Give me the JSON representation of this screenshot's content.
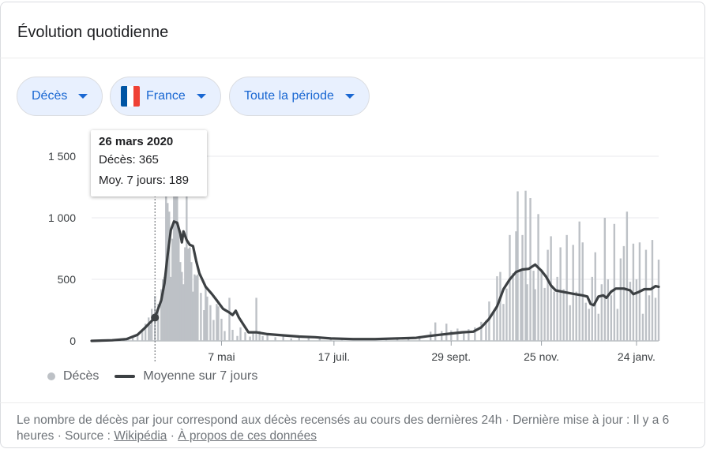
{
  "card": {
    "title": "Évolution quotidienne"
  },
  "filters": {
    "metric": "Décès",
    "country": "France",
    "period": "Toute la période",
    "flag_colors": [
      "#0055a4",
      "#ffffff",
      "#ef4135"
    ]
  },
  "tooltip": {
    "date": "26 mars 2020",
    "line1": "Décès: 365",
    "line2": "Moy. 7 jours: 189"
  },
  "legend": {
    "bars": "Décès",
    "line": "Moyenne sur 7 jours"
  },
  "footer": {
    "text": "Le nombre de décès par jour correspond aux décès recensés au cours des dernières 24h · Dernière mise à jour : Il y a 6 heures · Source : ",
    "source_link": "Wikipédia",
    "separator": " · ",
    "about_link": "À propos de ces données"
  },
  "chart_data": {
    "type": "bar",
    "title": "",
    "xlabel": "",
    "ylabel": "",
    "x_range": [
      "2020-02-15",
      "2021-02-07"
    ],
    "ylim": [
      0,
      1500
    ],
    "y_ticks": [
      0,
      500,
      1000,
      1500
    ],
    "y_tick_labels": [
      "0",
      "500",
      "1 000",
      "1 500"
    ],
    "x_ticks": [
      {
        "date": "2020-05-07",
        "label": "7 mai"
      },
      {
        "date": "2020-07-17",
        "label": "17 juil."
      },
      {
        "date": "2020-09-29",
        "label": "29 sept."
      },
      {
        "date": "2020-11-25",
        "label": "25 nov."
      },
      {
        "date": "2021-01-24",
        "label": "24 janv."
      }
    ],
    "highlight": {
      "date": "2020-03-26",
      "deaths": 365,
      "avg7": 189
    },
    "grid": true,
    "colors": {
      "bars": "#bdc1c6",
      "line": "#3c4043",
      "grid": "#e8eaed"
    },
    "series": [
      {
        "name": "Décès",
        "type": "bar",
        "points": [
          [
            "2020-02-28",
            0
          ],
          [
            "2020-03-01",
            3
          ],
          [
            "2020-03-05",
            5
          ],
          [
            "2020-03-09",
            12
          ],
          [
            "2020-03-12",
            25
          ],
          [
            "2020-03-15",
            45
          ],
          [
            "2020-03-18",
            90
          ],
          [
            "2020-03-20",
            140
          ],
          [
            "2020-03-22",
            190
          ],
          [
            "2020-03-23",
            130
          ],
          [
            "2020-03-24",
            260
          ],
          [
            "2020-03-26",
            365
          ],
          [
            "2020-03-28",
            300
          ],
          [
            "2020-03-30",
            420
          ],
          [
            "2020-03-31",
            500
          ],
          [
            "2020-04-01",
            520
          ],
          [
            "2020-04-02",
            1300
          ],
          [
            "2020-04-03",
            1120
          ],
          [
            "2020-04-04",
            1050
          ],
          [
            "2020-04-05",
            520
          ],
          [
            "2020-04-06",
            830
          ],
          [
            "2020-04-07",
            1400
          ],
          [
            "2020-04-08",
            1200
          ],
          [
            "2020-04-09",
            1350
          ],
          [
            "2020-04-10",
            900
          ],
          [
            "2020-04-11",
            640
          ],
          [
            "2020-04-12",
            560
          ],
          [
            "2020-04-13",
            460
          ],
          [
            "2020-04-14",
            760
          ],
          [
            "2020-04-15",
            1440
          ],
          [
            "2020-04-16",
            750
          ],
          [
            "2020-04-17",
            760
          ],
          [
            "2020-04-18",
            640
          ],
          [
            "2020-04-19",
            400
          ],
          [
            "2020-04-20",
            540
          ],
          [
            "2020-04-21",
            530
          ],
          [
            "2020-04-22",
            540
          ],
          [
            "2020-04-24",
            390
          ],
          [
            "2020-04-26",
            250
          ],
          [
            "2020-04-27",
            440
          ],
          [
            "2020-04-28",
            360
          ],
          [
            "2020-04-30",
            290
          ],
          [
            "2020-05-02",
            170
          ],
          [
            "2020-05-04",
            300
          ],
          [
            "2020-05-05",
            280
          ],
          [
            "2020-05-07",
            180
          ],
          [
            "2020-05-09",
            80
          ],
          [
            "2020-05-12",
            350
          ],
          [
            "2020-05-14",
            90
          ],
          [
            "2020-05-17",
            40
          ],
          [
            "2020-05-19",
            110
          ],
          [
            "2020-05-22",
            70
          ],
          [
            "2020-05-25",
            35
          ],
          [
            "2020-05-27",
            60
          ],
          [
            "2020-05-29",
            350
          ],
          [
            "2020-05-31",
            80
          ],
          [
            "2020-06-02",
            40
          ],
          [
            "2020-06-05",
            50
          ],
          [
            "2020-06-10",
            30
          ],
          [
            "2020-06-15",
            40
          ],
          [
            "2020-06-20",
            20
          ],
          [
            "2020-06-25",
            30
          ],
          [
            "2020-07-01",
            25
          ],
          [
            "2020-07-08",
            20
          ],
          [
            "2020-07-15",
            15
          ],
          [
            "2020-07-22",
            15
          ],
          [
            "2020-07-29",
            10
          ],
          [
            "2020-08-05",
            12
          ],
          [
            "2020-08-12",
            15
          ],
          [
            "2020-08-19",
            20
          ],
          [
            "2020-08-26",
            20
          ],
          [
            "2020-09-02",
            25
          ],
          [
            "2020-09-09",
            40
          ],
          [
            "2020-09-16",
            75
          ],
          [
            "2020-09-19",
            150
          ],
          [
            "2020-09-23",
            80
          ],
          [
            "2020-09-26",
            140
          ],
          [
            "2020-09-29",
            85
          ],
          [
            "2020-10-03",
            100
          ],
          [
            "2020-10-07",
            60
          ],
          [
            "2020-10-10",
            95
          ],
          [
            "2020-10-14",
            110
          ],
          [
            "2020-10-18",
            155
          ],
          [
            "2020-10-21",
            165
          ],
          [
            "2020-10-23",
            320
          ],
          [
            "2020-10-26",
            250
          ],
          [
            "2020-10-28",
            525
          ],
          [
            "2020-10-30",
            560
          ],
          [
            "2020-11-01",
            300
          ],
          [
            "2020-11-03",
            425
          ],
          [
            "2020-11-05",
            860
          ],
          [
            "2020-11-07",
            550
          ],
          [
            "2020-11-09",
            890
          ],
          [
            "2020-11-10",
            1215
          ],
          [
            "2020-11-12",
            570
          ],
          [
            "2020-11-13",
            860
          ],
          [
            "2020-11-15",
            1220
          ],
          [
            "2020-11-16",
            460
          ],
          [
            "2020-11-18",
            1160
          ],
          [
            "2020-11-20",
            570
          ],
          [
            "2020-11-21",
            420
          ],
          [
            "2020-11-23",
            1030
          ],
          [
            "2020-11-25",
            580
          ],
          [
            "2020-11-27",
            430
          ],
          [
            "2020-11-29",
            740
          ],
          [
            "2020-12-01",
            850
          ],
          [
            "2020-12-03",
            400
          ],
          [
            "2020-12-05",
            520
          ],
          [
            "2020-12-07",
            760
          ],
          [
            "2020-12-09",
            420
          ],
          [
            "2020-12-11",
            860
          ],
          [
            "2020-12-13",
            290
          ],
          [
            "2020-12-15",
            780
          ],
          [
            "2020-12-17",
            400
          ],
          [
            "2020-12-19",
            970
          ],
          [
            "2020-12-21",
            800
          ],
          [
            "2020-12-23",
            310
          ],
          [
            "2020-12-25",
            260
          ],
          [
            "2020-12-27",
            520
          ],
          [
            "2020-12-29",
            720
          ],
          [
            "2020-12-31",
            220
          ],
          [
            "2021-01-02",
            460
          ],
          [
            "2021-01-04",
            1000
          ],
          [
            "2021-01-06",
            500
          ],
          [
            "2021-01-08",
            370
          ],
          [
            "2021-01-10",
            950
          ],
          [
            "2021-01-12",
            260
          ],
          [
            "2021-01-14",
            670
          ],
          [
            "2021-01-16",
            770
          ],
          [
            "2021-01-18",
            1050
          ],
          [
            "2021-01-20",
            480
          ],
          [
            "2021-01-22",
            790
          ],
          [
            "2021-01-24",
            500
          ],
          [
            "2021-01-26",
            800
          ],
          [
            "2021-01-28",
            220
          ],
          [
            "2021-01-30",
            740
          ],
          [
            "2021-02-01",
            370
          ],
          [
            "2021-02-03",
            820
          ],
          [
            "2021-02-05",
            350
          ],
          [
            "2021-02-07",
            660
          ]
        ]
      },
      {
        "name": "Moyenne sur 7 jours",
        "type": "line",
        "points": [
          [
            "2020-02-15",
            0
          ],
          [
            "2020-02-28",
            5
          ],
          [
            "2020-03-08",
            15
          ],
          [
            "2020-03-15",
            50
          ],
          [
            "2020-03-20",
            110
          ],
          [
            "2020-03-26",
            189
          ],
          [
            "2020-03-30",
            330
          ],
          [
            "2020-04-01",
            470
          ],
          [
            "2020-04-03",
            700
          ],
          [
            "2020-04-05",
            900
          ],
          [
            "2020-04-07",
            970
          ],
          [
            "2020-04-09",
            960
          ],
          [
            "2020-04-11",
            870
          ],
          [
            "2020-04-12",
            800
          ],
          [
            "2020-04-13",
            890
          ],
          [
            "2020-04-15",
            820
          ],
          [
            "2020-04-17",
            780
          ],
          [
            "2020-04-19",
            770
          ],
          [
            "2020-04-21",
            650
          ],
          [
            "2020-04-23",
            550
          ],
          [
            "2020-04-27",
            440
          ],
          [
            "2020-05-01",
            380
          ],
          [
            "2020-05-04",
            330
          ],
          [
            "2020-05-08",
            260
          ],
          [
            "2020-05-12",
            230
          ],
          [
            "2020-05-14",
            210
          ],
          [
            "2020-05-16",
            245
          ],
          [
            "2020-05-18",
            190
          ],
          [
            "2020-05-21",
            130
          ],
          [
            "2020-05-24",
            70
          ],
          [
            "2020-05-29",
            70
          ],
          [
            "2020-06-05",
            55
          ],
          [
            "2020-06-15",
            45
          ],
          [
            "2020-06-25",
            35
          ],
          [
            "2020-07-05",
            30
          ],
          [
            "2020-07-15",
            20
          ],
          [
            "2020-07-29",
            15
          ],
          [
            "2020-08-12",
            15
          ],
          [
            "2020-08-26",
            20
          ],
          [
            "2020-09-07",
            25
          ],
          [
            "2020-09-15",
            40
          ],
          [
            "2020-09-22",
            50
          ],
          [
            "2020-09-29",
            60
          ],
          [
            "2020-10-06",
            70
          ],
          [
            "2020-10-13",
            75
          ],
          [
            "2020-10-18",
            110
          ],
          [
            "2020-10-23",
            180
          ],
          [
            "2020-10-28",
            280
          ],
          [
            "2020-11-01",
            420
          ],
          [
            "2020-11-05",
            500
          ],
          [
            "2020-11-09",
            560
          ],
          [
            "2020-11-13",
            580
          ],
          [
            "2020-11-17",
            585
          ],
          [
            "2020-11-21",
            620
          ],
          [
            "2020-11-25",
            570
          ],
          [
            "2020-11-28",
            520
          ],
          [
            "2020-12-01",
            450
          ],
          [
            "2020-12-04",
            410
          ],
          [
            "2020-12-10",
            395
          ],
          [
            "2020-12-16",
            380
          ],
          [
            "2020-12-21",
            370
          ],
          [
            "2020-12-24",
            360
          ],
          [
            "2020-12-26",
            300
          ],
          [
            "2020-12-28",
            290
          ],
          [
            "2020-12-31",
            360
          ],
          [
            "2021-01-03",
            370
          ],
          [
            "2021-01-05",
            350
          ],
          [
            "2021-01-08",
            400
          ],
          [
            "2021-01-11",
            425
          ],
          [
            "2021-01-16",
            425
          ],
          [
            "2021-01-20",
            410
          ],
          [
            "2021-01-22",
            380
          ],
          [
            "2021-01-25",
            395
          ],
          [
            "2021-01-29",
            420
          ],
          [
            "2021-02-02",
            420
          ],
          [
            "2021-02-05",
            445
          ],
          [
            "2021-02-07",
            440
          ]
        ]
      }
    ]
  }
}
